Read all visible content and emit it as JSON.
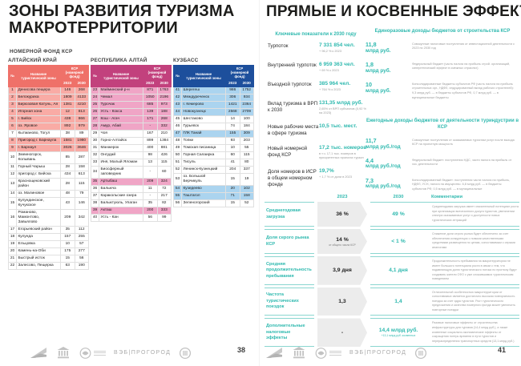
{
  "colors": {
    "accent_teal": "#2fb9af",
    "teal_line": "#8ad6d0",
    "arrow_grey": "#ececec",
    "title_dark": "#1d1d1b",
    "note_grey": "#9b9b9b"
  },
  "left_page": {
    "title": "ЗОНЫ РАЗВИТИЯ ТУРИЗМА МАКРОТЕРРИТОРИИ",
    "subtitle": "НОМЕРНОЙ ФОНД КСР",
    "page_number": "38",
    "col_headers": {
      "num": "№",
      "name": "Название туристической зоны",
      "ksr": "КСР (номерной фонд)",
      "y2023": "2023",
      "y2030": "2030"
    },
    "tables": [
      {
        "region": "АЛТАЙСКИЙ КРАЙ",
        "colors": {
          "header": "#ef7169",
          "highlight": "#f9aba5"
        },
        "rows": [
          {
            "n": "1",
            "name": "Денисова пещера",
            "v2023": "146",
            "v2030": "268",
            "hl": true
          },
          {
            "n": "2",
            "name": "Белокуриха",
            "v2023": "1809",
            "v2030": "4133",
            "hl": true
          },
          {
            "n": "3",
            "name": "Бирюзовая Катунь, Ая",
            "v2023": "1381",
            "v2030": "4210",
            "hl": true
          },
          {
            "n": "4",
            "name": "Игорная зона",
            "v2023": "12",
            "v2030": "813",
            "hl": true
          },
          {
            "n": "5",
            "name": "г. Бийск",
            "v2023": "438",
            "v2030": "866",
            "hl": true
          },
          {
            "n": "6",
            "name": "оз. Яровое",
            "v2023": "892",
            "v2030": "979",
            "hl": true
          },
          {
            "n": "7",
            "name": "Кытманово, Тогул",
            "v2023": "38",
            "v2030": "89",
            "hl": false
          },
          {
            "n": "8",
            "name": "Пригород г. Барнаула",
            "v2023": "1581",
            "v2030": "1980",
            "hl": true
          },
          {
            "n": "9",
            "name": "г. Барнаул",
            "v2023": "3026",
            "v2030": "3646",
            "hl": true
          },
          {
            "n": "10",
            "name": "Змеиногорск, Колывань",
            "v2023": "85",
            "v2030": "287",
            "hl": false
          },
          {
            "n": "11",
            "name": "Горный Чарыш",
            "v2023": "28",
            "v2030": "158",
            "hl": false
          },
          {
            "n": "12",
            "name": "пригород г. Бийска",
            "v2023": "434",
            "v2030": "613",
            "hl": false
          },
          {
            "n": "13",
            "name": "Краснощековский район",
            "v2023": "28",
            "v2030": "115",
            "hl": false
          },
          {
            "n": "14",
            "name": "оз. Малиновое",
            "v2023": "48",
            "v2030": "79",
            "hl": false
          },
          {
            "n": "15",
            "name": "Кулундинское, Кучукское",
            "v2023": "43",
            "v2030": "146",
            "hl": false
          },
          {
            "n": "16",
            "name": "Романово, Мамонтово, Завьялово",
            "v2023": "209",
            "v2030": "342",
            "hl": false
          },
          {
            "n": "17",
            "name": "Егорьевский район",
            "v2023": "35",
            "v2030": "112",
            "hl": false
          },
          {
            "n": "18",
            "name": "Кулунда",
            "v2023": "157",
            "v2030": "255",
            "hl": false
          },
          {
            "n": "19",
            "name": "Ельцовка",
            "v2023": "10",
            "v2030": "57",
            "hl": false
          },
          {
            "n": "20",
            "name": "Камень-на-Оби",
            "v2023": "175",
            "v2030": "277",
            "hl": false
          },
          {
            "n": "21",
            "name": "Быстрый исток",
            "v2023": "15",
            "v2030": "56",
            "hl": false
          },
          {
            "n": "22",
            "name": "Залесово, Пещерка",
            "v2023": "63",
            "v2030": "190",
            "hl": false
          }
        ]
      },
      {
        "region": "РЕСПУБЛИКА АЛТАЙ",
        "colors": {
          "header": "#c2417d",
          "highlight": "#f0a5c6"
        },
        "rows": [
          {
            "n": "23",
            "name": "Майминский р-н",
            "v2023": "871",
            "v2030": "1763",
            "hl": true
          },
          {
            "n": "24",
            "name": "Чемал",
            "v2023": "1050",
            "v2030": "2196",
            "hl": true
          },
          {
            "n": "25",
            "name": "Турочак",
            "v2023": "685",
            "v2030": "973",
            "hl": true
          },
          {
            "n": "26",
            "name": "Усть - Кокса",
            "v2023": "139",
            "v2030": "188",
            "hl": true
          },
          {
            "n": "27",
            "name": "Кош - Агач",
            "v2023": "171",
            "v2030": "268",
            "hl": true
          },
          {
            "n": "28",
            "name": "Амур, Абай",
            "v2023": "-",
            "v2030": "332",
            "hl": true
          },
          {
            "n": "29",
            "name": "Чоя",
            "v2023": "167",
            "v2030": "210",
            "hl": false
          },
          {
            "n": "30",
            "name": "Горно-Алтайск",
            "v2023": "899",
            "v2030": "1384",
            "hl": false
          },
          {
            "n": "31",
            "name": "Манжерок",
            "v2023": "400",
            "v2030": "881",
            "hl": false
          },
          {
            "n": "32",
            "name": "Онгудай",
            "v2023": "98",
            "v2030": "426",
            "hl": false
          },
          {
            "n": "33",
            "name": "Иня, Малый Яломан",
            "v2023": "13",
            "v2030": "115",
            "hl": false
          },
          {
            "n": "34",
            "name": "Биосферный заповедник",
            "v2023": "-",
            "v2030": "60",
            "hl": false
          },
          {
            "n": "35",
            "name": "Артыбаш",
            "v2023": "209",
            "v2030": "324",
            "hl": true
          },
          {
            "n": "36",
            "name": "Балыкча",
            "v2023": "11",
            "v2030": "72",
            "hl": false
          },
          {
            "n": "37",
            "name": "Каракольские озера",
            "v2023": "-",
            "v2030": "217",
            "hl": false
          },
          {
            "n": "38",
            "name": "Балыктуюль, Улаган",
            "v2023": "35",
            "v2030": "82",
            "hl": false
          },
          {
            "n": "39",
            "name": "Акташ",
            "v2023": "200",
            "v2030": "333",
            "hl": true
          },
          {
            "n": "40",
            "name": "Усть - Кан",
            "v2023": "56",
            "v2030": "99",
            "hl": false
          }
        ]
      },
      {
        "region": "КУЗБАСС",
        "colors": {
          "header": "#1d4f9c",
          "highlight": "#abd4ef"
        },
        "rows": [
          {
            "n": "41",
            "name": "Шерегеш",
            "v2023": "986",
            "v2030": "1752",
            "hl": true
          },
          {
            "n": "42",
            "name": "Междуреченск",
            "v2023": "306",
            "v2030": "934",
            "hl": true
          },
          {
            "n": "43",
            "name": "г. Кемерово",
            "v2023": "1421",
            "v2030": "2364",
            "hl": true
          },
          {
            "n": "44",
            "name": "Новокузнецк",
            "v2023": "2568",
            "v2030": "2709",
            "hl": true
          },
          {
            "n": "45",
            "name": "Шестаково",
            "v2023": "14",
            "v2030": "100",
            "hl": false
          },
          {
            "n": "46",
            "name": "Гурьевск",
            "v2023": "74",
            "v2030": "184",
            "hl": false
          },
          {
            "n": "47",
            "name": "ГЛК Танай",
            "v2023": "155",
            "v2030": "309",
            "hl": true
          },
          {
            "n": "48",
            "name": "Топки",
            "v2023": "93",
            "v2030": "203",
            "hl": false
          },
          {
            "n": "49",
            "name": "Томская писаница",
            "v2023": "10",
            "v2030": "55",
            "hl": false
          },
          {
            "n": "50",
            "name": "Горная Салаирка",
            "v2023": "60",
            "v2030": "115",
            "hl": false
          },
          {
            "n": "51",
            "name": "Тисуль",
            "v2023": "41",
            "v2030": "80",
            "hl": false
          },
          {
            "n": "52",
            "name": "Ленинск-Кузнецкий",
            "v2023": "204",
            "v2030": "337",
            "hl": false
          },
          {
            "n": "53",
            "name": "оз. Большой Берчикуль",
            "v2023": "15",
            "v2030": "19",
            "hl": false
          },
          {
            "n": "54",
            "name": "Кузедеево",
            "v2023": "20",
            "v2030": "102",
            "hl": true
          },
          {
            "n": "55",
            "name": "Таштагол",
            "v2023": "71",
            "v2030": "158",
            "hl": true
          },
          {
            "n": "56",
            "name": "Зеленогорский",
            "v2023": "15",
            "v2030": "52",
            "hl": false
          }
        ]
      }
    ]
  },
  "right_page": {
    "title": "ПРЯМЫЕ И КОСВЕННЫЕ ЭФФЕКТЫ",
    "page_number": "41",
    "key_indicators": {
      "heading": "Ключевые показатели к 2030 году",
      "items": [
        {
          "label": "Турпоток",
          "value": "7 331 854 чел.",
          "note": "+ 96,2 % к 2023"
        },
        {
          "label": "Внутренний турпоток",
          "value": "6 959 363 чел.",
          "note": "+ 69 % к 2023"
        },
        {
          "label": "Въездной турпоток",
          "value": "385 964 чел.",
          "note": "+ 764 % к 2023"
        },
        {
          "label": "Вклад туризма в ВРП к 2030",
          "value": "131,35 млрд руб.",
          "note": "2,65% от ВРП субъектов (0,92 % на 2023)"
        },
        {
          "label": "Новые рабочие места в сфере туризма",
          "value": "10,5 тыс. мест.",
          "note": ""
        },
        {
          "label": "Новый номерной фонд КСР",
          "value": "17,2 тыс. номеров",
          "note": "в т.ч. 17,1 тыс. номеров в приоритетных проектах турзон"
        },
        {
          "label": "Доля номеров в ИСР в общем номерном фонде",
          "value": "19,7%",
          "note": "+ 1,7 % от доли в 2023"
        }
      ]
    },
    "onetime_budget": {
      "heading": "Единоразовые доходы бюджетов от строительства КСР",
      "items": [
        {
          "value": "11,8",
          "unit": "млрд руб.",
          "desc": "Совокупные налоговые поступления от инвестиционной деятельности с 2023 по 2030 год"
        },
        {
          "value": "1,8",
          "unit": "млрд руб.",
          "desc": "Федеральный бюджет (часть налога на прибыль строй. организаций, синергетический эффект в смежных отраслях)"
        },
        {
          "value": "10",
          "unit": "млрд руб.",
          "desc": "Консолидированные бюджеты субъектов РФ (часть налога на прибыль строительных орг., НДФЛ, индуцированный вклад рабочих строителей): 9,3 млрд руб. — в бюджеты субъектов РФ, 0,7 млрд руб. — в муниципальные бюджеты"
        }
      ]
    },
    "annual_budget": {
      "heading": "Ежегодные доходы бюджетов от деятельности туриндустрии в КСР",
      "items": [
        {
          "value": "11,7",
          "unit": "млрд руб./год",
          "desc": "Совокупные поступления от оказываемых туристам услуг после выхода КСР на проектную мощность"
        },
        {
          "value": "4,4",
          "unit": "млрд руб./год",
          "desc": "Федеральный бюджет: поступления НДС, части налога на прибыль от хоз. деятельности"
        },
        {
          "value": "7,3",
          "unit": "млрд руб./год",
          "desc": "Консолидированный бюджет: поступления части налога на прибыль, НДФЛ, УСН, налога на имущество. 6,8 млрд руб. — в бюджеты субъектов РФ, 0,5 млрд руб. — в муниципальные"
        }
      ]
    },
    "comparison": {
      "col_2023": "2023",
      "col_2030": "2030",
      "col_comment": "Комментарии",
      "rows": [
        {
          "label": "Среднегодовая загрузка",
          "v2023": "36 %",
          "v2023_note": "",
          "v2030": "49 %",
          "v2030_note": "",
          "comment": "Среднегодовая загрузка имеет значительный потенциал роста при организации всесезонного досуга туристов, увеличении спектра оказываемых услуг и доступности новых туристических аттракций"
        },
        {
          "label": "Доля серого рынка КСР",
          "v2023": "14 %",
          "v2023_note": "от общего числа КСР",
          "v2030": "< 1 %",
          "v2030_note": "",
          "comment": "Снижение доли серого рынка будет обеспечено за счет обеспечения конкуренции с новыми качественными средствами размещения по ценам, сопоставимым с серыми аналогами"
        },
        {
          "label": "Средняя продолжительность пребывания",
          "v2023": "3,9 дня",
          "v2023_note": "",
          "v2030": "4,1 дня",
          "v2030_note": "",
          "comment": "Продолжительность пребывания на макротерритории не имеет большого потенциала роста в связи с тем, что подавляющую долю туристического потока по прогнозу будут создавать жители СФО с уже сложившимся туристическим поведением"
        },
        {
          "label": "Частота туристических поездок",
          "v2023": "1,3",
          "v2023_note": "",
          "v2030": "1,4",
          "v2030_note": "",
          "comment": "Отличительной особенностью макротерритории от сопоставимых является достаточно высокая повторяемость поездок за счет ядра туристов. Рост туристического предложения и качества номерного фонда может увеличить повторные поездки"
        },
        {
          "label": "Дополнительные налоговые эффекты",
          "v2023": "-",
          "v2023_note": "",
          "v2030": "14,4 млрд руб.",
          "v2030_note": "+13,1 млрд руб. косвенных",
          "comment": "Разовые налоговые эффекты от строительства инфраструктуры для туризма (14,4 млрд руб.), а также косвенные социально-экономические эффекты от сокращения потерь времени в пути туристов и перераспределения транспортных средств (13,1 млрд руб.)"
        }
      ]
    }
  },
  "footer": {
    "wordmark": "ВЭБ|ПРОГОРОД",
    "logos": [
      "altai-flag-logo",
      "government-building-logo",
      "ministry-emblem-logo",
      "veb-progorod-wordmark",
      "tourism-ring-logo"
    ]
  }
}
